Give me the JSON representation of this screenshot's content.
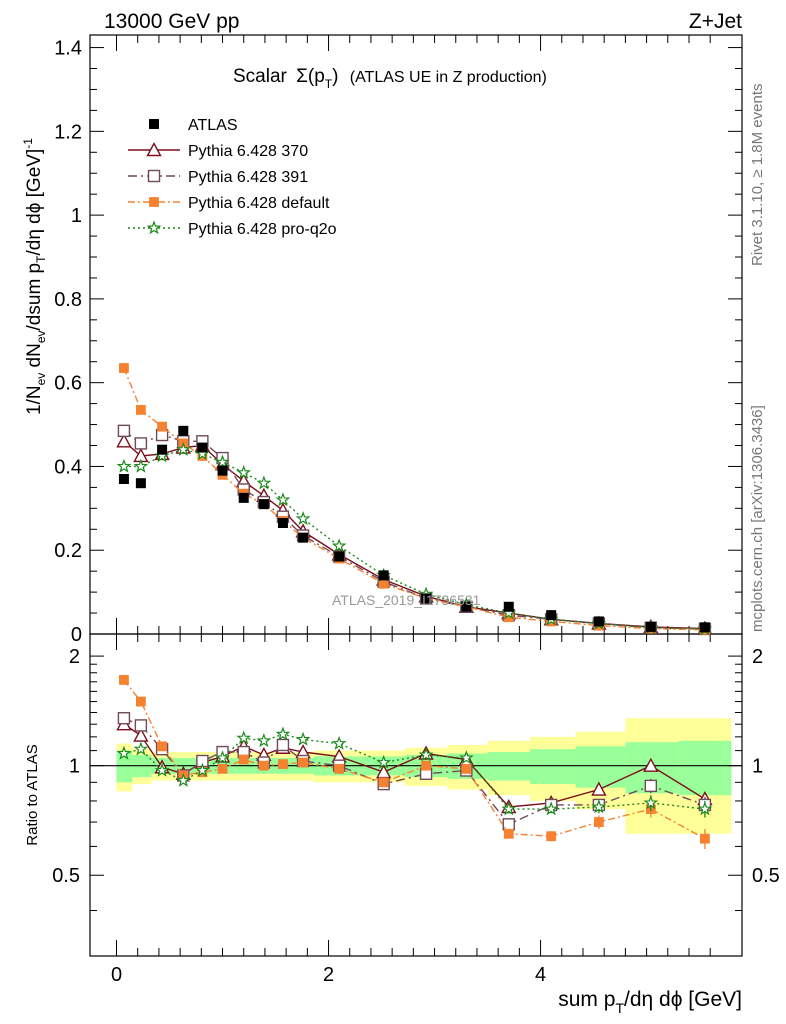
{
  "header": {
    "left": "13000 GeV pp",
    "right": "Z+Jet"
  },
  "side_labels": {
    "rivet": "Rivet 3.1.10, ≥ 1.8M events",
    "mcplots": "mcplots.cern.ch [arXiv:1306.3436]"
  },
  "watermark": "ATLAS_2019_I1736531",
  "colors": {
    "atlas": "#000000",
    "p370": "#7a0f1c",
    "p391": "#6e4a5a",
    "pdefault": "#f58231",
    "pq2o": "#1a8a1a",
    "band_inner": "#99ff99",
    "band_outer": "#ffff99"
  },
  "chart_data": {
    "type": "scatter",
    "title": {
      "prefix": "Scalar",
      "sigma": "Σ(p",
      "sub": "T",
      "suffix": ")",
      "paren": "(ATLAS UE in Z production)"
    },
    "xlabel": "sum p_T/dη dϕ [GeV]",
    "ylabel": "1/N_ev dN_ev/dsum p_T/dη dϕ [GeV]^-1",
    "ratio_ylabel": "Ratio to ATLAS",
    "xlim": [
      -0.25,
      5.9
    ],
    "ylim": [
      0,
      1.43
    ],
    "ratio_ylim": [
      0.3,
      2.3
    ],
    "ratio_scale": "log",
    "x_ticks": [
      "0",
      "2",
      "4"
    ],
    "y_ticks": [
      "0",
      "0.2",
      "0.4",
      "0.6",
      "0.8",
      "1",
      "1.2",
      "1.4"
    ],
    "ratio_ticks": [
      "0.5",
      "1",
      "2"
    ],
    "legend_position": "top-left",
    "x": [
      0.07,
      0.23,
      0.43,
      0.63,
      0.81,
      1.0,
      1.2,
      1.39,
      1.57,
      1.76,
      2.1,
      2.52,
      2.92,
      3.3,
      3.7,
      4.1,
      4.55,
      5.04,
      5.55
    ],
    "data": {
      "name": "ATLAS",
      "values": [
        0.37,
        0.36,
        0.44,
        0.485,
        0.445,
        0.39,
        0.325,
        0.31,
        0.265,
        0.23,
        0.185,
        0.14,
        0.085,
        0.065,
        0.065,
        0.045,
        0.03,
        0.017,
        0.016
      ]
    },
    "series": [
      {
        "name": "Pythia 6.428 370",
        "key": "p370",
        "values": [
          0.46,
          0.425,
          0.43,
          0.445,
          0.45,
          0.405,
          0.365,
          0.33,
          0.295,
          0.245,
          0.19,
          0.13,
          0.09,
          0.065,
          0.05,
          0.035,
          0.025,
          0.017,
          0.013
        ],
        "ratio": [
          1.3,
          1.21,
          0.99,
          0.95,
          1.02,
          1.06,
          1.13,
          1.07,
          1.12,
          1.09,
          1.06,
          0.96,
          1.08,
          1.04,
          0.77,
          0.79,
          0.86,
          1.0,
          0.81
        ],
        "ratio_err": [
          0.02,
          0.02,
          0.01,
          0.01,
          0.01,
          0.01,
          0.01,
          0.01,
          0.01,
          0.01,
          0.01,
          0.01,
          0.01,
          0.01,
          0.01,
          0.01,
          0.02,
          0.03,
          0.03
        ]
      },
      {
        "name": "Pythia 6.428 391",
        "key": "p391",
        "values": [
          0.485,
          0.455,
          0.475,
          0.46,
          0.46,
          0.42,
          0.345,
          0.315,
          0.28,
          0.235,
          0.185,
          0.125,
          0.085,
          0.065,
          0.045,
          0.035,
          0.025,
          0.015,
          0.012
        ],
        "ratio": [
          1.35,
          1.29,
          1.11,
          0.94,
          1.03,
          1.09,
          1.09,
          1.02,
          1.14,
          1.03,
          1.0,
          0.89,
          0.95,
          0.97,
          0.69,
          0.78,
          0.78,
          0.88,
          0.78
        ],
        "ratio_err": [
          0.02,
          0.02,
          0.01,
          0.01,
          0.01,
          0.01,
          0.01,
          0.01,
          0.01,
          0.01,
          0.01,
          0.01,
          0.01,
          0.01,
          0.02,
          0.02,
          0.03,
          0.04,
          0.04
        ]
      },
      {
        "name": "Pythia 6.428 default",
        "key": "pdefault",
        "values": [
          0.635,
          0.535,
          0.495,
          0.455,
          0.425,
          0.38,
          0.335,
          0.31,
          0.27,
          0.23,
          0.18,
          0.12,
          0.085,
          0.065,
          0.04,
          0.03,
          0.02,
          0.013,
          0.01
        ],
        "ratio": [
          1.72,
          1.5,
          1.13,
          0.94,
          0.96,
          0.98,
          1.04,
          1.0,
          1.01,
          1.02,
          0.98,
          0.9,
          1.0,
          0.98,
          0.65,
          0.64,
          0.7,
          0.76,
          0.63
        ],
        "ratio_err": [
          0.02,
          0.02,
          0.01,
          0.01,
          0.01,
          0.01,
          0.01,
          0.01,
          0.01,
          0.01,
          0.01,
          0.01,
          0.01,
          0.01,
          0.02,
          0.02,
          0.03,
          0.04,
          0.04
        ]
      },
      {
        "name": "Pythia 6.428 pro-q2o",
        "key": "pq2o",
        "values": [
          0.4,
          0.4,
          0.425,
          0.44,
          0.43,
          0.41,
          0.385,
          0.36,
          0.32,
          0.275,
          0.21,
          0.14,
          0.095,
          0.07,
          0.05,
          0.035,
          0.025,
          0.015,
          0.012
        ],
        "ratio": [
          1.08,
          1.11,
          0.97,
          0.91,
          0.97,
          1.05,
          1.19,
          1.17,
          1.22,
          1.18,
          1.15,
          1.02,
          1.07,
          1.05,
          0.76,
          0.76,
          0.77,
          0.79,
          0.76
        ],
        "ratio_err": [
          0.02,
          0.02,
          0.01,
          0.01,
          0.01,
          0.01,
          0.01,
          0.01,
          0.01,
          0.01,
          0.01,
          0.01,
          0.01,
          0.01,
          0.02,
          0.02,
          0.03,
          0.04,
          0.04
        ]
      }
    ],
    "uncertainty_band": {
      "edges": [
        0.0,
        0.15,
        0.33,
        0.53,
        0.72,
        0.9,
        1.1,
        1.3,
        1.48,
        1.67,
        1.86,
        2.33,
        2.72,
        3.12,
        3.5,
        3.9,
        4.33,
        4.8,
        5.3,
        5.8
      ],
      "inner": [
        0.1,
        0.07,
        0.05,
        0.05,
        0.05,
        0.05,
        0.05,
        0.05,
        0.05,
        0.05,
        0.06,
        0.06,
        0.07,
        0.08,
        0.09,
        0.11,
        0.13,
        0.16,
        0.17
      ],
      "outer": [
        0.15,
        0.11,
        0.09,
        0.09,
        0.09,
        0.09,
        0.09,
        0.09,
        0.09,
        0.09,
        0.1,
        0.1,
        0.12,
        0.14,
        0.17,
        0.2,
        0.24,
        0.35,
        0.35
      ]
    }
  }
}
